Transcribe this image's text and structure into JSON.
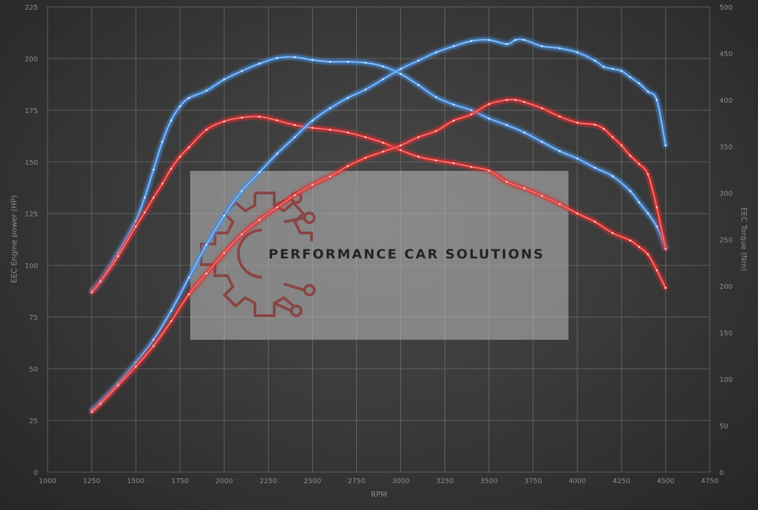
{
  "chart_data": {
    "type": "line",
    "xlabel": "RPM",
    "ylabel_left": "EEC Engine power (HP)",
    "ylabel_right": "EEC Torque (Nm)",
    "xlim": [
      1000,
      4750
    ],
    "ylim_left": [
      0,
      225
    ],
    "ylim_right": [
      0,
      500
    ],
    "x_ticks": [
      1000,
      1250,
      1500,
      1750,
      2000,
      2250,
      2500,
      2750,
      3000,
      3250,
      3500,
      3750,
      4000,
      4250,
      4500,
      4750
    ],
    "y_ticks_left": [
      0,
      25,
      50,
      75,
      100,
      125,
      150,
      175,
      200,
      225
    ],
    "y_ticks_right": [
      0,
      50,
      100,
      150,
      200,
      250,
      300,
      350,
      400,
      450,
      500
    ],
    "grid": true,
    "series": [
      {
        "axis": "right",
        "color": "#4a8fe0",
        "x": [
          1250,
          1300,
          1400,
          1500,
          1550,
          1600,
          1650,
          1700,
          1750,
          1800,
          1900,
          2000,
          2100,
          2200,
          2300,
          2400,
          2500,
          2600,
          2700,
          2800,
          2900,
          3000,
          3100,
          3200,
          3300,
          3400,
          3500,
          3600,
          3700,
          3800,
          3900,
          4000,
          4100,
          4200,
          4300,
          4350,
          4400,
          4450,
          4500
        ],
        "values": [
          195,
          206,
          236,
          270,
          295,
          325,
          355,
          378,
          393,
          402,
          410,
          422,
          431,
          439,
          445,
          446,
          443,
          441,
          441,
          440,
          436,
          428,
          416,
          403,
          395,
          389,
          380,
          373,
          365,
          355,
          345,
          337,
          327,
          318,
          302,
          290,
          278,
          264,
          241
        ]
      },
      {
        "axis": "right",
        "color": "#e03030",
        "x": [
          1250,
          1300,
          1400,
          1500,
          1550,
          1600,
          1650,
          1700,
          1750,
          1800,
          1900,
          2000,
          2100,
          2200,
          2300,
          2400,
          2500,
          2600,
          2700,
          2800,
          2900,
          3000,
          3100,
          3200,
          3300,
          3400,
          3500,
          3600,
          3700,
          3800,
          3900,
          4000,
          4100,
          4200,
          4300,
          4350,
          4400,
          4450,
          4500
        ],
        "values": [
          193,
          205,
          232,
          264,
          279,
          295,
          310,
          326,
          339,
          349,
          368,
          377,
          381,
          382,
          378,
          373,
          370,
          368,
          365,
          360,
          354,
          346,
          339,
          335,
          332,
          328,
          324,
          312,
          305,
          297,
          288,
          278,
          269,
          257,
          249,
          242,
          234,
          217,
          198
        ]
      },
      {
        "axis": "left",
        "color": "#4a8fe0",
        "x": [
          1250,
          1300,
          1400,
          1500,
          1600,
          1700,
          1800,
          1900,
          2000,
          2100,
          2200,
          2300,
          2400,
          2500,
          2600,
          2700,
          2800,
          2900,
          3000,
          3100,
          3200,
          3300,
          3400,
          3500,
          3600,
          3650,
          3700,
          3800,
          3900,
          4000,
          4100,
          4150,
          4200,
          4250,
          4300,
          4350,
          4400,
          4450,
          4500
        ],
        "values": [
          30,
          34,
          43,
          53,
          64,
          78,
          94,
          110,
          124,
          136,
          145,
          154,
          162,
          170,
          176,
          181,
          185,
          190,
          195,
          199,
          203,
          206,
          208.5,
          209,
          207,
          209,
          209,
          206,
          205,
          203,
          199,
          196,
          195,
          194,
          191,
          188,
          184,
          180,
          158
        ]
      },
      {
        "axis": "left",
        "color": "#e03030",
        "x": [
          1250,
          1300,
          1400,
          1500,
          1600,
          1700,
          1800,
          1900,
          2000,
          2100,
          2200,
          2300,
          2400,
          2500,
          2600,
          2700,
          2800,
          2900,
          3000,
          3100,
          3200,
          3300,
          3400,
          3500,
          3600,
          3650,
          3700,
          3800,
          3900,
          4000,
          4100,
          4150,
          4200,
          4250,
          4300,
          4350,
          4400,
          4450,
          4500
        ],
        "values": [
          29,
          33,
          42,
          51,
          61,
          73,
          86,
          96,
          106,
          115,
          122,
          128,
          134,
          139,
          143,
          148,
          152,
          155,
          158,
          162,
          165,
          170,
          173,
          178,
          180,
          180,
          179,
          176,
          172,
          169,
          168,
          166,
          162,
          158,
          153,
          149,
          144,
          128,
          108
        ]
      }
    ]
  },
  "watermark": {
    "text": "PERFORMANCE CAR SOLUTIONS",
    "logo_icon": "gear-circuit-icon",
    "color": "#bdbdbd"
  }
}
